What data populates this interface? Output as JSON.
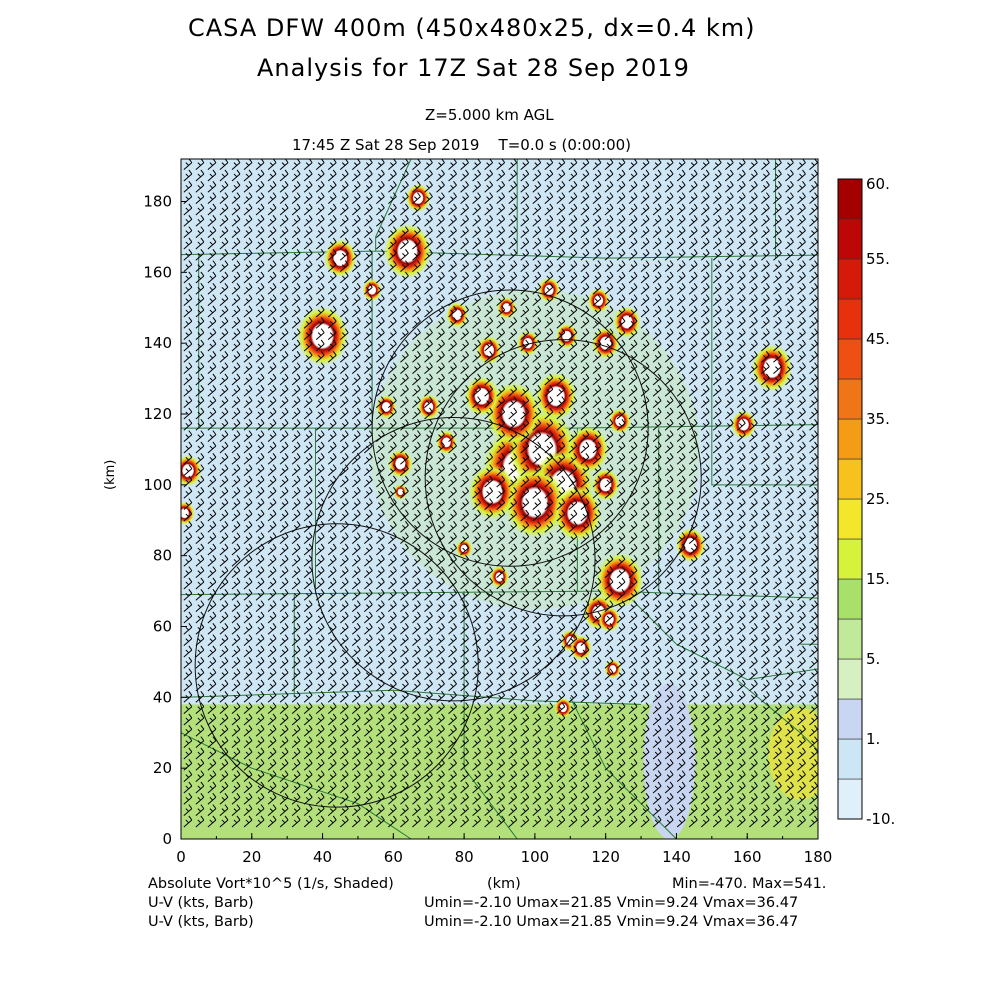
{
  "header": {
    "title_line1": "CASA DFW 400m (450x480x25, dx=0.4 km)",
    "title_line2": "Analysis for 17Z Sat 28 Sep 2019",
    "level": "Z=5.000 km AGL",
    "valid_time": "17:45 Z Sat 28 Sep 2019    T=0.0 s (0:00:00)"
  },
  "footer": {
    "field_label": "Absolute Vort*10^5 (1/s, Shaded)",
    "xunit": "(km)",
    "minmax": "Min=-470. Max=541.",
    "barb1_label": "U-V (kts, Barb)",
    "barb1_stats": "Umin=-2.10 Umax=21.85 Vmin=9.24 Vmax=36.47",
    "barb2_label": "U-V (kts, Barb)",
    "barb2_stats": "Umin=-2.10 Umax=21.85 Vmin=9.24 Vmax=36.47"
  },
  "colors": {
    "bg_low": "#cfe6f5",
    "bg_south": "#b3e07a",
    "county_lines": "#2a7a3a",
    "barbs": "#000000"
  },
  "chart_data": {
    "type": "heatmap",
    "field": "Absolute Vort*10^5 (1/s)",
    "xlabel": "",
    "ylabel": "(km)",
    "xlim": [
      0,
      180
    ],
    "ylim": [
      0,
      192
    ],
    "xticks": [
      "0",
      "20",
      "40",
      "60",
      "80",
      "100",
      "120",
      "140",
      "160",
      "180"
    ],
    "yticks": [
      "0",
      "20",
      "40",
      "60",
      "80",
      "100",
      "120",
      "140",
      "160",
      "180"
    ],
    "colorbar": {
      "levels": [
        {
          "from": -10,
          "color": "#dff0fb"
        },
        {
          "from": -5,
          "color": "#cde6f6"
        },
        {
          "from": 1,
          "color": "#c9d6f1"
        },
        {
          "from": 3,
          "color": "#d7f0c2"
        },
        {
          "from": 5,
          "color": "#c1e99a"
        },
        {
          "from": 10,
          "color": "#a8e06a"
        },
        {
          "from": 15,
          "color": "#d6f23a"
        },
        {
          "from": 20,
          "color": "#f2e72a"
        },
        {
          "from": 25,
          "color": "#f8c21e"
        },
        {
          "from": 30,
          "color": "#f59c16"
        },
        {
          "from": 35,
          "color": "#f07418"
        },
        {
          "from": 40,
          "color": "#ee4f12"
        },
        {
          "from": 45,
          "color": "#e6300e"
        },
        {
          "from": 50,
          "color": "#d51a0a"
        },
        {
          "from": 55,
          "color": "#bd0707"
        },
        {
          "from": 60,
          "color": "#a50000"
        }
      ],
      "tick_labels": [
        {
          "value": 60,
          "text": "60."
        },
        {
          "value": 55,
          "text": "55."
        },
        {
          "value": 45,
          "text": "45."
        },
        {
          "value": 35,
          "text": "35."
        },
        {
          "value": 25,
          "text": "25."
        },
        {
          "value": 15,
          "text": "15."
        },
        {
          "value": 5,
          "text": "5."
        },
        {
          "value": 1,
          "text": "1."
        },
        {
          "value": -10,
          "text": "-10."
        }
      ]
    },
    "vorticity_cells": [
      {
        "x": 40,
        "y": 142,
        "r": 3.8
      },
      {
        "x": 45,
        "y": 164,
        "r": 2.4
      },
      {
        "x": 64,
        "y": 166,
        "r": 3.5
      },
      {
        "x": 67,
        "y": 181,
        "r": 1.8
      },
      {
        "x": 54,
        "y": 155,
        "r": 1.4
      },
      {
        "x": 2,
        "y": 104,
        "r": 2.0
      },
      {
        "x": 1,
        "y": 92,
        "r": 1.5
      },
      {
        "x": 167,
        "y": 133,
        "r": 3.0
      },
      {
        "x": 159,
        "y": 117,
        "r": 1.8
      },
      {
        "x": 144,
        "y": 83,
        "r": 2.2
      },
      {
        "x": 124,
        "y": 73,
        "r": 3.5
      },
      {
        "x": 118,
        "y": 64,
        "r": 2.2
      },
      {
        "x": 121,
        "y": 62,
        "r": 1.6
      },
      {
        "x": 110,
        "y": 56,
        "r": 1.4
      },
      {
        "x": 113,
        "y": 54,
        "r": 1.6
      },
      {
        "x": 108,
        "y": 37,
        "r": 1.3
      },
      {
        "x": 122,
        "y": 48,
        "r": 1.2
      },
      {
        "x": 90,
        "y": 74,
        "r": 1.4
      },
      {
        "x": 80,
        "y": 82,
        "r": 1.2
      },
      {
        "x": 95,
        "y": 105,
        "r": 5.0
      },
      {
        "x": 102,
        "y": 110,
        "r": 5.0
      },
      {
        "x": 108,
        "y": 100,
        "r": 4.5
      },
      {
        "x": 100,
        "y": 95,
        "r": 4.5
      },
      {
        "x": 112,
        "y": 92,
        "r": 3.5
      },
      {
        "x": 88,
        "y": 98,
        "r": 3.5
      },
      {
        "x": 94,
        "y": 120,
        "r": 4.0
      },
      {
        "x": 106,
        "y": 125,
        "r": 3.0
      },
      {
        "x": 115,
        "y": 110,
        "r": 3.0
      },
      {
        "x": 85,
        "y": 125,
        "r": 2.5
      },
      {
        "x": 87,
        "y": 138,
        "r": 1.8
      },
      {
        "x": 78,
        "y": 148,
        "r": 1.6
      },
      {
        "x": 70,
        "y": 122,
        "r": 1.6
      },
      {
        "x": 58,
        "y": 122,
        "r": 1.5
      },
      {
        "x": 62,
        "y": 106,
        "r": 1.8
      },
      {
        "x": 75,
        "y": 112,
        "r": 1.5
      },
      {
        "x": 62,
        "y": 98,
        "r": 1.0
      },
      {
        "x": 104,
        "y": 155,
        "r": 1.6
      },
      {
        "x": 118,
        "y": 152,
        "r": 1.6
      },
      {
        "x": 126,
        "y": 146,
        "r": 2.0
      },
      {
        "x": 120,
        "y": 140,
        "r": 2.0
      },
      {
        "x": 124,
        "y": 118,
        "r": 1.6
      },
      {
        "x": 120,
        "y": 100,
        "r": 2.0
      },
      {
        "x": 109,
        "y": 142,
        "r": 1.6
      },
      {
        "x": 92,
        "y": 150,
        "r": 1.4
      },
      {
        "x": 98,
        "y": 140,
        "r": 1.6
      }
    ],
    "radar_rings_km": [
      {
        "cx": 93,
        "cy": 116,
        "r": 39
      },
      {
        "cx": 108,
        "cy": 102,
        "r": 39
      },
      {
        "cx": 77,
        "cy": 79,
        "r": 40
      },
      {
        "cx": 44,
        "cy": 49,
        "r": 40
      }
    ]
  }
}
